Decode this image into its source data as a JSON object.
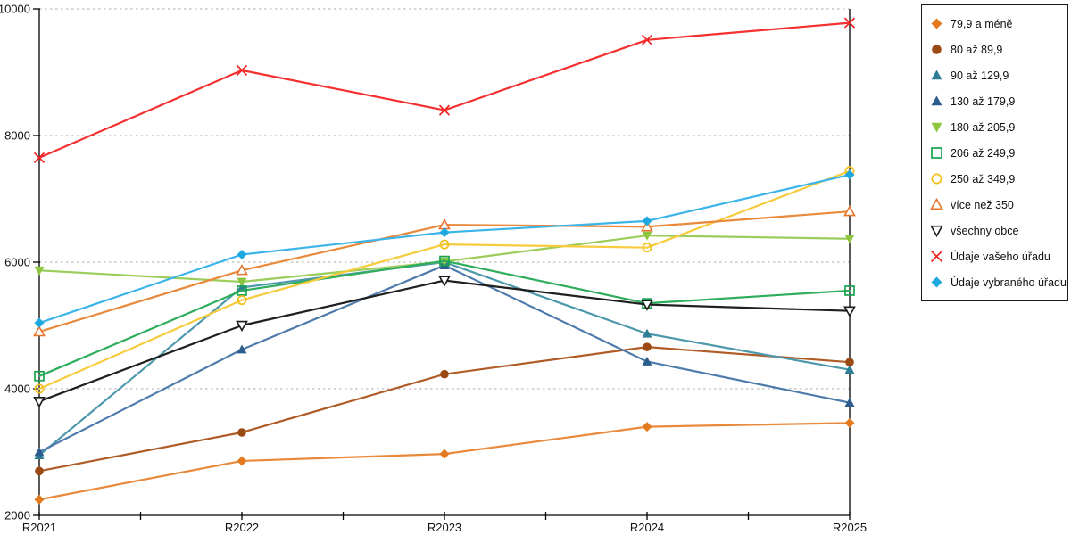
{
  "chart_data": {
    "type": "line",
    "title": "",
    "xlabel": "",
    "ylabel": "",
    "categories": [
      "R2021",
      "R2022",
      "R2023",
      "R2024",
      "R2025"
    ],
    "y_axis": {
      "min": 2000,
      "max": 10000,
      "step": 2000,
      "ticks": [
        2000,
        4000,
        6000,
        8000,
        10000
      ]
    },
    "grid": {
      "horizontal": true,
      "style": "dashed",
      "color": "#adadad"
    },
    "legend_position": "right",
    "series": [
      {
        "name": "79,9 a méně",
        "marker": "diamond",
        "marker_color": "#e4791f",
        "line_color": "#e9893b",
        "values": [
          2250,
          2860,
          2970,
          3400,
          3460
        ]
      },
      {
        "name": "80 až 89,9",
        "marker": "circle",
        "marker_color": "#9c4a14",
        "line_color": "#af5c27",
        "values": [
          2700,
          3310,
          4230,
          4660,
          4420
        ]
      },
      {
        "name": "90 až 129,9",
        "marker": "triangle-up",
        "marker_color": "#2f7e93",
        "line_color": "#4e98ac",
        "values": [
          2950,
          5600,
          6000,
          4870,
          4300
        ]
      },
      {
        "name": "130 až 179,9",
        "marker": "triangle-up",
        "marker_color": "#2c5c8c",
        "line_color": "#4e7bab",
        "values": [
          3000,
          4620,
          5950,
          4430,
          3780
        ]
      },
      {
        "name": "180 až 205,9",
        "marker": "triangle-down",
        "marker_color": "#8cc63f",
        "line_color": "#9bcd5b",
        "values": [
          5870,
          5690,
          6010,
          6420,
          6370
        ]
      },
      {
        "name": "206 až 249,9",
        "marker": "square-open",
        "marker_color": "#18a24d",
        "line_color": "#2ead5c",
        "values": [
          4200,
          5550,
          6020,
          5350,
          5550
        ]
      },
      {
        "name": "250 až 349,9",
        "marker": "circle-open",
        "marker_color": "#f2bf18",
        "line_color": "#f6cb3c",
        "values": [
          4000,
          5400,
          6280,
          6230,
          7440
        ]
      },
      {
        "name": "více než 350",
        "marker": "triangle-up-open",
        "marker_color": "#e8742c",
        "line_color": "#e9893b",
        "values": [
          4900,
          5870,
          6590,
          6560,
          6800
        ]
      },
      {
        "name": "všechny obce",
        "marker": "triangle-down-open",
        "marker_color": "#1a1a1a",
        "line_color": "#1f1f1f",
        "values": [
          3800,
          5000,
          5710,
          5330,
          5230
        ]
      },
      {
        "name": "Údaje vašeho úřadu",
        "marker": "x",
        "marker_color": "#f42525",
        "line_color": "#f43030",
        "values": [
          7650,
          9030,
          8400,
          9510,
          9780
        ]
      },
      {
        "name": "Údaje vybraného úřadu",
        "marker": "diamond",
        "marker_color": "#1fa8e0",
        "line_color": "#3bb4e9",
        "values": [
          5040,
          6120,
          6470,
          6650,
          7380
        ]
      }
    ]
  },
  "layout_colors": {
    "axis": "#000000",
    "background": "#ffffff",
    "text": "#111111"
  }
}
